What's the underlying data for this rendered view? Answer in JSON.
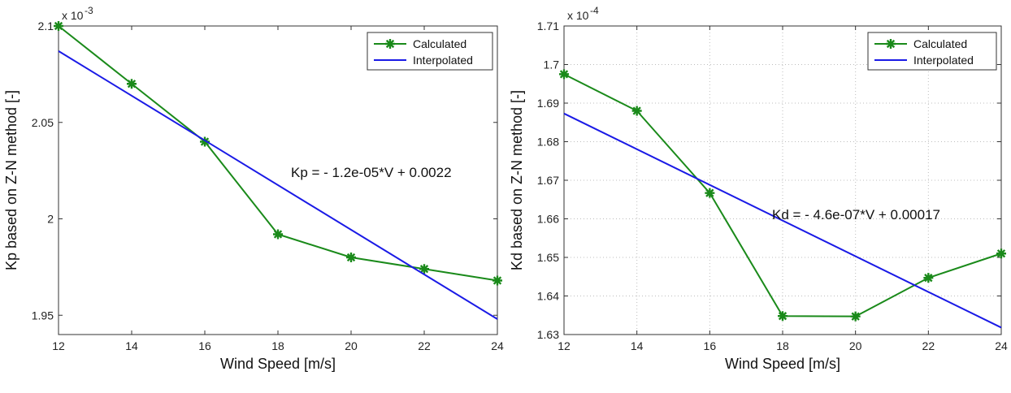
{
  "chart_data": [
    {
      "type": "line",
      "multiplier": "x 10",
      "exponent": "-3",
      "xlabel": "Wind Speed [m/s]",
      "ylabel": "Kp based on Z-N method [-]",
      "xlim": [
        12,
        24
      ],
      "ylim": [
        1.94,
        2.1
      ],
      "xticks": [
        "12",
        "14",
        "16",
        "18",
        "20",
        "22",
        "24"
      ],
      "yticks": [
        "1.95",
        "2",
        "2.05",
        "2.1"
      ],
      "grid": false,
      "legend_position": "top-right",
      "annotation": "Kp = - 1.2e-05*V + 0.0022",
      "series": [
        {
          "name": "Calculated",
          "color": "#1a8a1a",
          "marker": "asterisk",
          "x": [
            12,
            14,
            16,
            18,
            20,
            22,
            24
          ],
          "y": [
            2.1,
            2.07,
            2.04,
            1.992,
            1.98,
            1.974,
            1.968
          ]
        },
        {
          "name": "Interpolated",
          "color": "#1a1ae6",
          "marker": "none",
          "x": [
            12,
            24
          ],
          "y": [
            2.087,
            1.948
          ]
        }
      ]
    },
    {
      "type": "line",
      "multiplier": "x 10",
      "exponent": "-4",
      "xlabel": "Wind Speed [m/s]",
      "ylabel": "Kd based on Z-N method [-]",
      "xlim": [
        12,
        24
      ],
      "ylim": [
        1.63,
        1.71
      ],
      "xticks": [
        "12",
        "14",
        "16",
        "18",
        "20",
        "22",
        "24"
      ],
      "yticks": [
        "1.63",
        "1.64",
        "1.65",
        "1.66",
        "1.67",
        "1.68",
        "1.69",
        "1.7",
        "1.71"
      ],
      "grid": true,
      "legend_position": "top-right",
      "annotation": "Kd = - 4.6e-07*V + 0.00017",
      "series": [
        {
          "name": "Calculated",
          "color": "#1a8a1a",
          "marker": "asterisk",
          "x": [
            12,
            14,
            16,
            18,
            20,
            22,
            24
          ],
          "y": [
            1.6975,
            1.688,
            1.6667,
            1.6348,
            1.6347,
            1.6447,
            1.651
          ]
        },
        {
          "name": "Interpolated",
          "color": "#1a1ae6",
          "marker": "none",
          "x": [
            12,
            24
          ],
          "y": [
            1.6873,
            1.6318
          ]
        }
      ]
    }
  ]
}
